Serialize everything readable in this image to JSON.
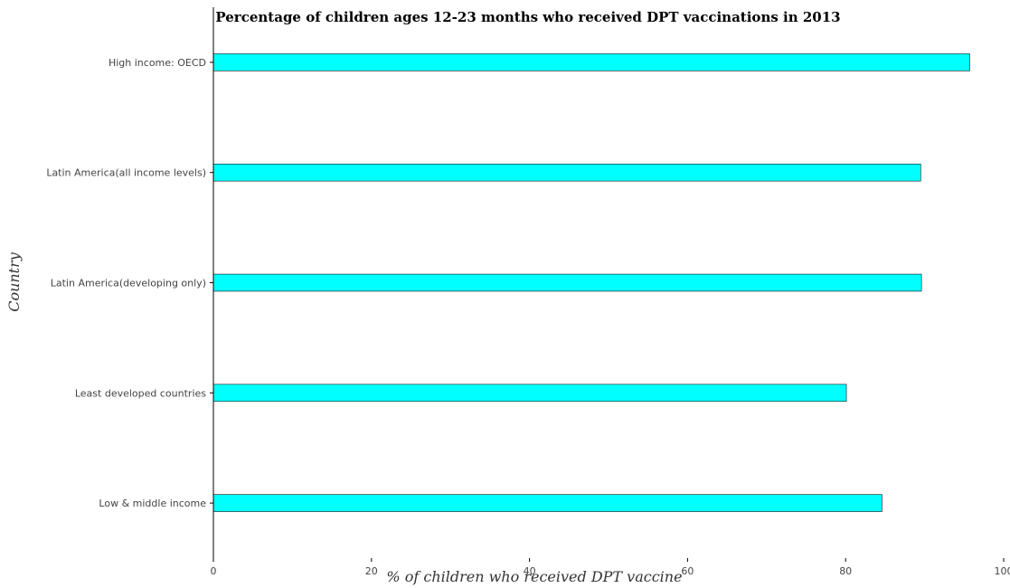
{
  "chart_data": {
    "type": "bar",
    "orientation": "horizontal",
    "title": "Percentage of children ages 12-23 months who received DPT vaccinations in 2013",
    "xlabel": "% of children who received DPT vaccine",
    "ylabel": "Country",
    "xlim": [
      0,
      100
    ],
    "xticks": [
      0,
      20,
      40,
      60,
      80,
      100
    ],
    "xtick_labels": [
      "0",
      "20",
      "40",
      "60",
      "80",
      "100"
    ],
    "categories": [
      "High income: OECD",
      "Latin America(all income levels)",
      "Latin America(developing only)",
      "Least developed countries",
      "Low & middle income"
    ],
    "values": [
      95.7,
      89.5,
      89.6,
      80.1,
      84.6
    ],
    "bar_color": "#00ffff",
    "grid": false,
    "legend": "none"
  }
}
